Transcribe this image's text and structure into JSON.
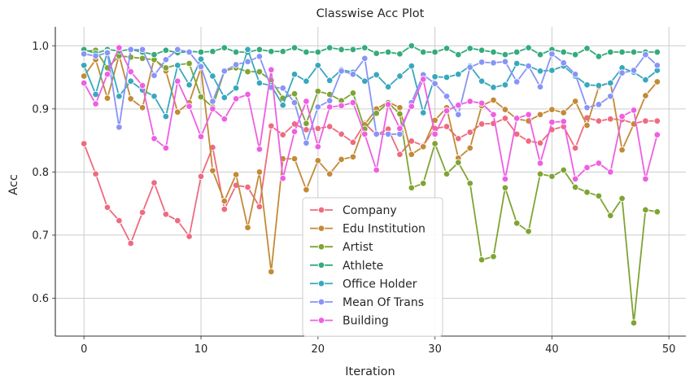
{
  "chart_data": {
    "type": "line",
    "title": "Classwise Acc Plot",
    "xlabel": "Iteration",
    "ylabel": "Acc",
    "xlim": [
      -2.45,
      51.45
    ],
    "ylim": [
      0.54,
      1.03
    ],
    "xticks": [
      0,
      10,
      20,
      30,
      40,
      50
    ],
    "yticks": [
      0.6,
      0.7,
      0.8,
      0.9,
      1.0
    ],
    "xtick_labels": [
      "0",
      "10",
      "20",
      "30",
      "40",
      "50"
    ],
    "ytick_labels": [
      "0.6",
      "0.7",
      "0.8",
      "0.9",
      "1.0"
    ],
    "grid": true,
    "legend_position": "lower-center",
    "marker": "circle",
    "x": [
      0,
      1,
      2,
      3,
      4,
      5,
      6,
      7,
      8,
      9,
      10,
      11,
      12,
      13,
      14,
      15,
      16,
      17,
      18,
      19,
      20,
      21,
      22,
      23,
      24,
      25,
      26,
      27,
      28,
      29,
      30,
      31,
      32,
      33,
      34,
      35,
      36,
      37,
      38,
      39,
      40,
      41,
      42,
      43,
      44,
      45,
      46,
      47,
      48,
      49
    ],
    "series": [
      {
        "name": "Company",
        "color": "#ee6b7f",
        "values": [
          0.845,
          0.797,
          0.744,
          0.723,
          0.687,
          0.736,
          0.783,
          0.733,
          0.723,
          0.698,
          0.793,
          0.839,
          0.741,
          0.779,
          0.776,
          0.745,
          0.873,
          0.859,
          0.876,
          0.867,
          0.869,
          0.872,
          0.86,
          0.847,
          0.877,
          0.859,
          0.868,
          0.828,
          0.849,
          0.842,
          0.869,
          0.872,
          0.853,
          0.863,
          0.876,
          0.877,
          0.885,
          0.86,
          0.849,
          0.846,
          0.867,
          0.872,
          0.838,
          0.886,
          0.881,
          0.884,
          0.883,
          0.877,
          0.881,
          0.881
        ]
      },
      {
        "name": "Edu Institution",
        "color": "#c38a37",
        "values": [
          0.952,
          0.978,
          0.917,
          0.985,
          0.916,
          0.902,
          0.98,
          0.96,
          0.895,
          0.91,
          0.965,
          0.802,
          0.754,
          0.796,
          0.712,
          0.8,
          0.642,
          0.821,
          0.821,
          0.772,
          0.818,
          0.797,
          0.82,
          0.824,
          0.875,
          0.9,
          0.911,
          0.902,
          0.828,
          0.84,
          0.882,
          0.902,
          0.822,
          0.838,
          0.905,
          0.914,
          0.899,
          0.884,
          0.881,
          0.891,
          0.899,
          0.894,
          0.912,
          0.874,
          0.935,
          0.942,
          0.835,
          0.876,
          0.921,
          0.943
        ]
      },
      {
        "name": "Artist",
        "color": "#7fa433",
        "values": [
          0.991,
          0.993,
          0.965,
          0.984,
          0.982,
          0.98,
          0.978,
          0.965,
          0.97,
          0.972,
          0.919,
          0.903,
          0.96,
          0.965,
          0.959,
          0.959,
          0.945,
          0.917,
          0.924,
          0.877,
          0.928,
          0.923,
          0.913,
          0.925,
          0.868,
          0.893,
          0.91,
          0.892,
          0.775,
          0.782,
          0.845,
          0.797,
          0.815,
          0.782,
          0.661,
          0.666,
          0.775,
          0.719,
          0.706,
          0.797,
          0.793,
          0.803,
          0.776,
          0.768,
          0.762,
          0.731,
          0.758,
          0.561,
          0.74,
          0.737
        ]
      },
      {
        "name": "Athlete",
        "color": "#35ab7c",
        "values": [
          0.994,
          0.988,
          0.994,
          0.992,
          0.994,
          0.99,
          0.986,
          0.993,
          0.989,
          0.991,
          0.99,
          0.991,
          0.997,
          0.99,
          0.99,
          0.994,
          0.991,
          0.991,
          0.997,
          0.99,
          0.99,
          0.997,
          0.994,
          0.994,
          0.997,
          0.988,
          0.99,
          0.987,
          1.0,
          0.99,
          0.99,
          0.996,
          0.986,
          0.996,
          0.993,
          0.99,
          0.986,
          0.99,
          0.997,
          0.986,
          0.994,
          0.99,
          0.986,
          0.996,
          0.983,
          0.99,
          0.99,
          0.99,
          0.99,
          0.99
        ]
      },
      {
        "name": "Office Holder",
        "color": "#38a8bd",
        "values": [
          0.969,
          0.923,
          0.99,
          0.92,
          0.944,
          0.93,
          0.92,
          0.888,
          0.969,
          0.938,
          0.979,
          0.952,
          0.918,
          0.933,
          0.994,
          0.941,
          0.937,
          0.906,
          0.955,
          0.944,
          0.969,
          0.945,
          0.962,
          0.958,
          0.944,
          0.954,
          0.935,
          0.952,
          0.968,
          0.894,
          0.951,
          0.95,
          0.955,
          0.968,
          0.944,
          0.934,
          0.938,
          0.972,
          0.968,
          0.96,
          0.961,
          0.968,
          0.952,
          0.938,
          0.937,
          0.941,
          0.965,
          0.958,
          0.946,
          0.961
        ]
      },
      {
        "name": "Mean Of Trans",
        "color": "#8894f6",
        "values": [
          0.987,
          0.984,
          0.989,
          0.871,
          0.994,
          0.994,
          0.953,
          0.978,
          0.994,
          0.99,
          0.967,
          0.912,
          0.96,
          0.97,
          0.975,
          0.983,
          0.934,
          0.933,
          0.91,
          0.846,
          0.903,
          0.913,
          0.96,
          0.955,
          0.98,
          0.86,
          0.86,
          0.86,
          0.91,
          0.954,
          0.94,
          0.92,
          0.891,
          0.966,
          0.974,
          0.973,
          0.975,
          0.943,
          0.968,
          0.935,
          0.987,
          0.973,
          0.955,
          0.902,
          0.907,
          0.92,
          0.957,
          0.961,
          0.986,
          0.969
        ]
      },
      {
        "name": "Building",
        "color": "#ee5fe2",
        "values": [
          0.941,
          0.908,
          0.955,
          0.997,
          0.959,
          0.937,
          0.853,
          0.838,
          0.944,
          0.904,
          0.856,
          0.9,
          0.884,
          0.916,
          0.923,
          0.836,
          0.962,
          0.79,
          0.864,
          0.912,
          0.84,
          0.903,
          0.905,
          0.91,
          0.86,
          0.803,
          0.907,
          0.869,
          0.904,
          0.947,
          0.86,
          0.897,
          0.906,
          0.912,
          0.909,
          0.891,
          0.789,
          0.885,
          0.891,
          0.814,
          0.879,
          0.88,
          0.789,
          0.807,
          0.814,
          0.8,
          0.888,
          0.898,
          0.789,
          0.859
        ]
      }
    ]
  }
}
